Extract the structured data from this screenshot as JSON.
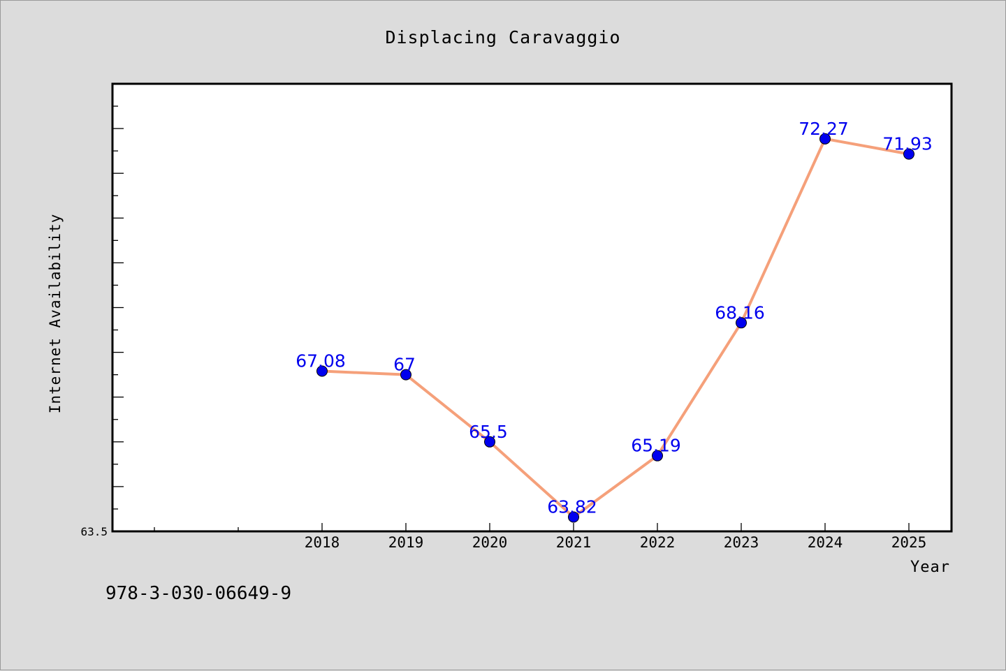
{
  "footer": {
    "code": "978-3-030-06649-9"
  },
  "chart_data": {
    "type": "line",
    "title": "Displacing Caravaggio",
    "xlabel": "Year",
    "ylabel": "Internet Availability",
    "categories": [
      "2018",
      "2019",
      "2020",
      "2021",
      "2022",
      "2023",
      "2024",
      "2025"
    ],
    "series": [
      {
        "values": [
          67.08,
          67,
          65.5,
          63.82,
          65.19,
          68.16,
          72.27,
          71.93
        ],
        "line_color": "#f5a07a",
        "marker_color": "#0000ee"
      }
    ],
    "data_labels": [
      "67.08",
      "67",
      "65.5",
      "63.82",
      "65.19",
      "68.16",
      "72.27",
      "71.93"
    ],
    "y_tick_labels": [
      "63.5"
    ],
    "ylim": [
      63.5,
      73.5
    ],
    "grid": false,
    "legend": "none",
    "colors": {
      "background": "#dcdcdc",
      "plot_background": "#ffffff",
      "data_label": "#0000ee"
    }
  }
}
